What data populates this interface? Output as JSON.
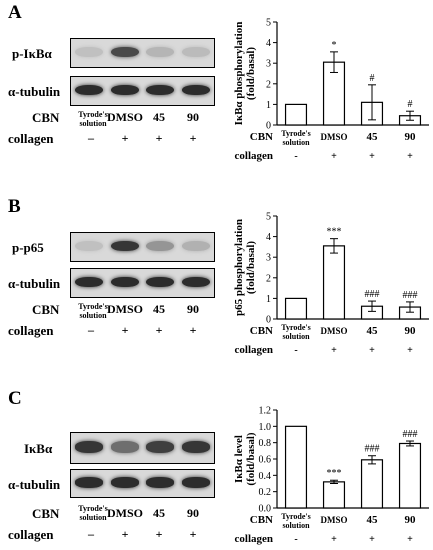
{
  "panels": [
    {
      "letter": "A",
      "blots": [
        {
          "label": "p-IκBα",
          "intensities": [
            0.12,
            0.75,
            0.18,
            0.15
          ]
        },
        {
          "label": "α-tubulin",
          "intensities": [
            0.9,
            0.9,
            0.9,
            0.9
          ]
        }
      ],
      "row_cbn_label": "CBN",
      "row_collagen_label": "collagen",
      "lanes": [
        "Tyrode's solution",
        "DMSO",
        "45",
        "90"
      ],
      "collagen_signs": [
        "–",
        "+",
        "+",
        "+"
      ]
    },
    {
      "letter": "B",
      "blots": [
        {
          "label": "p-p65",
          "intensities": [
            0.12,
            0.85,
            0.35,
            0.2
          ]
        },
        {
          "label": "α-tubulin",
          "intensities": [
            0.9,
            0.9,
            0.9,
            0.9
          ]
        }
      ],
      "row_cbn_label": "CBN",
      "row_collagen_label": "collagen",
      "lanes": [
        "Tyrode's solution",
        "DMSO",
        "45",
        "90"
      ],
      "collagen_signs": [
        "–",
        "+",
        "+",
        "+"
      ]
    },
    {
      "letter": "C",
      "blots": [
        {
          "label": "IκBα",
          "intensities": [
            0.85,
            0.55,
            0.8,
            0.85
          ]
        },
        {
          "label": "α-tubulin",
          "intensities": [
            0.9,
            0.9,
            0.9,
            0.9
          ]
        }
      ],
      "row_cbn_label": "CBN",
      "row_collagen_label": "collagen",
      "lanes": [
        "Tyrode's solution",
        "DMSO",
        "45",
        "90"
      ],
      "collagen_signs": [
        "–",
        "+",
        "+",
        "+"
      ]
    }
  ],
  "chart_data": [
    {
      "type": "bar",
      "ylabel": "IκBα phosphorylation (fold/basal)",
      "ylim": [
        0,
        5
      ],
      "yticks": [
        0,
        1,
        2,
        3,
        4,
        5
      ],
      "categories": [
        "Tyrode's solution",
        "DMSO",
        "45",
        "90"
      ],
      "values": [
        1.0,
        3.05,
        1.1,
        0.45
      ],
      "errors": [
        0,
        0.5,
        0.85,
        0.22
      ],
      "annotations": [
        "",
        "*",
        "#",
        "#"
      ],
      "row_cbn_label": "CBN",
      "row_collagen_label": "collagen",
      "collagen_signs": [
        "-",
        "+",
        "+",
        "+"
      ]
    },
    {
      "type": "bar",
      "ylabel": "p65 phosphorylation (fold/basal)",
      "ylim": [
        0,
        5
      ],
      "yticks": [
        0,
        1,
        2,
        3,
        4,
        5
      ],
      "categories": [
        "Tyrode's solution",
        "DMSO",
        "45",
        "90"
      ],
      "values": [
        1.0,
        3.55,
        0.62,
        0.58
      ],
      "errors": [
        0,
        0.35,
        0.25,
        0.25
      ],
      "annotations": [
        "",
        "***",
        "###",
        "###"
      ],
      "row_cbn_label": "CBN",
      "row_collagen_label": "collagen",
      "collagen_signs": [
        "-",
        "+",
        "+",
        "+"
      ]
    },
    {
      "type": "bar",
      "ylabel": "IκBα level (fold/basal)",
      "ylim": [
        0,
        1.2
      ],
      "yticks": [
        0.0,
        0.2,
        0.4,
        0.6,
        0.8,
        1.0,
        1.2
      ],
      "categories": [
        "Tyrode's solution",
        "DMSO",
        "45",
        "90"
      ],
      "values": [
        1.0,
        0.32,
        0.59,
        0.79
      ],
      "errors": [
        0,
        0.02,
        0.05,
        0.03
      ],
      "annotations": [
        "",
        "***",
        "###",
        "###"
      ],
      "row_cbn_label": "CBN",
      "row_collagen_label": "collagen",
      "collagen_signs": [
        "-",
        "+",
        "+",
        "+"
      ]
    }
  ]
}
